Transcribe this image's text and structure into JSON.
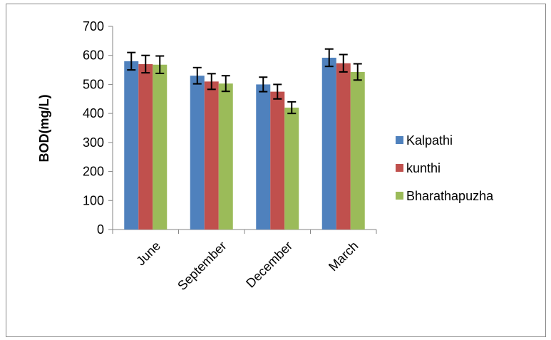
{
  "chart_data": {
    "type": "bar",
    "categories": [
      "June",
      "September",
      "December",
      "March"
    ],
    "series": [
      {
        "name": "Kalpathi",
        "values": [
          580,
          530,
          500,
          592
        ],
        "errors": [
          30,
          28,
          25,
          30
        ],
        "color": "#4F81BD"
      },
      {
        "name": "kunthi",
        "values": [
          570,
          510,
          475,
          573
        ],
        "errors": [
          30,
          27,
          25,
          30
        ],
        "color": "#C0504D"
      },
      {
        "name": "Bharathapuzha",
        "values": [
          568,
          503,
          420,
          543
        ],
        "errors": [
          30,
          27,
          20,
          28
        ],
        "color": "#9BBB59"
      }
    ],
    "ylabel": "BOD(mg/L)",
    "xlabel": "",
    "title": "",
    "ylim": [
      0,
      700
    ],
    "yticks": [
      0,
      100,
      200,
      300,
      400,
      500,
      600,
      700
    ],
    "grid": false,
    "legend_position": "right"
  }
}
